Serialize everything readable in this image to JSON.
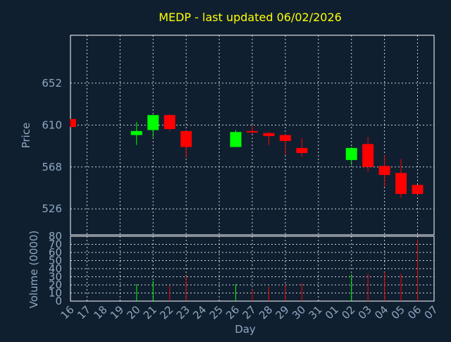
{
  "chart_data": [
    {
      "type": "candlestick",
      "title": "MEDP - last updated 06/02/2026",
      "ylabel": "Price",
      "xlabel": "Day",
      "ylim": [
        500,
        700
      ],
      "y_ticks": [
        526,
        568,
        610,
        652
      ],
      "grid": true,
      "up_color": "#00ff00",
      "down_color": "#ff0000",
      "x": [
        "16",
        "17",
        "18",
        "19",
        "20",
        "21",
        "22",
        "23",
        "24",
        "25",
        "26",
        "27",
        "28",
        "29",
        "30",
        "31",
        "01",
        "02",
        "03",
        "04",
        "05",
        "06",
        "07"
      ],
      "candles": [
        {
          "day": "16",
          "open": 616,
          "high": 616,
          "low": 608,
          "close": 608
        },
        {
          "day": "20",
          "open": 600,
          "high": 613,
          "low": 590,
          "close": 604
        },
        {
          "day": "21",
          "open": 605,
          "high": 620,
          "low": 598,
          "close": 620
        },
        {
          "day": "22",
          "open": 620,
          "high": 621,
          "low": 604,
          "close": 606
        },
        {
          "day": "23",
          "open": 604,
          "high": 604,
          "low": 577,
          "close": 588
        },
        {
          "day": "26",
          "open": 588,
          "high": 605,
          "low": 588,
          "close": 603
        },
        {
          "day": "27",
          "open": 604,
          "high": 610,
          "low": 601,
          "close": 603
        },
        {
          "day": "28",
          "open": 602,
          "high": 603,
          "low": 590,
          "close": 599
        },
        {
          "day": "29",
          "open": 600,
          "high": 601,
          "low": 580,
          "close": 594
        },
        {
          "day": "30",
          "open": 587,
          "high": 597,
          "low": 578,
          "close": 582
        },
        {
          "day": "02",
          "open": 575,
          "high": 588,
          "low": 570,
          "close": 587
        },
        {
          "day": "03",
          "open": 591,
          "high": 598,
          "low": 563,
          "close": 568
        },
        {
          "day": "04",
          "open": 569,
          "high": 580,
          "low": 548,
          "close": 560
        },
        {
          "day": "05",
          "open": 562,
          "high": 576,
          "low": 537,
          "close": 541
        },
        {
          "day": "06",
          "open": 550,
          "high": 550,
          "low": 540,
          "close": 541
        }
      ]
    },
    {
      "type": "bar",
      "ylabel": "Volume (0000)",
      "ylim": [
        0,
        80
      ],
      "y_ticks": [
        0,
        10,
        20,
        30,
        40,
        50,
        60,
        70,
        80
      ],
      "grid": true,
      "bars": [
        {
          "day": "20",
          "value": 21,
          "color": "#00ff00"
        },
        {
          "day": "21",
          "value": 25,
          "color": "#00ff00"
        },
        {
          "day": "22",
          "value": 19,
          "color": "#ff0000"
        },
        {
          "day": "23",
          "value": 31,
          "color": "#ff0000"
        },
        {
          "day": "26",
          "value": 21,
          "color": "#00ff00"
        },
        {
          "day": "27",
          "value": 14,
          "color": "#ff0000"
        },
        {
          "day": "28",
          "value": 18,
          "color": "#ff0000"
        },
        {
          "day": "29",
          "value": 20,
          "color": "#ff0000"
        },
        {
          "day": "30",
          "value": 22,
          "color": "#ff0000"
        },
        {
          "day": "02",
          "value": 33,
          "color": "#00ff00"
        },
        {
          "day": "03",
          "value": 34,
          "color": "#ff0000"
        },
        {
          "day": "04",
          "value": 36,
          "color": "#ff0000"
        },
        {
          "day": "05",
          "value": 34,
          "color": "#ff0000"
        },
        {
          "day": "06",
          "value": 76,
          "color": "#ff0000"
        }
      ]
    }
  ]
}
